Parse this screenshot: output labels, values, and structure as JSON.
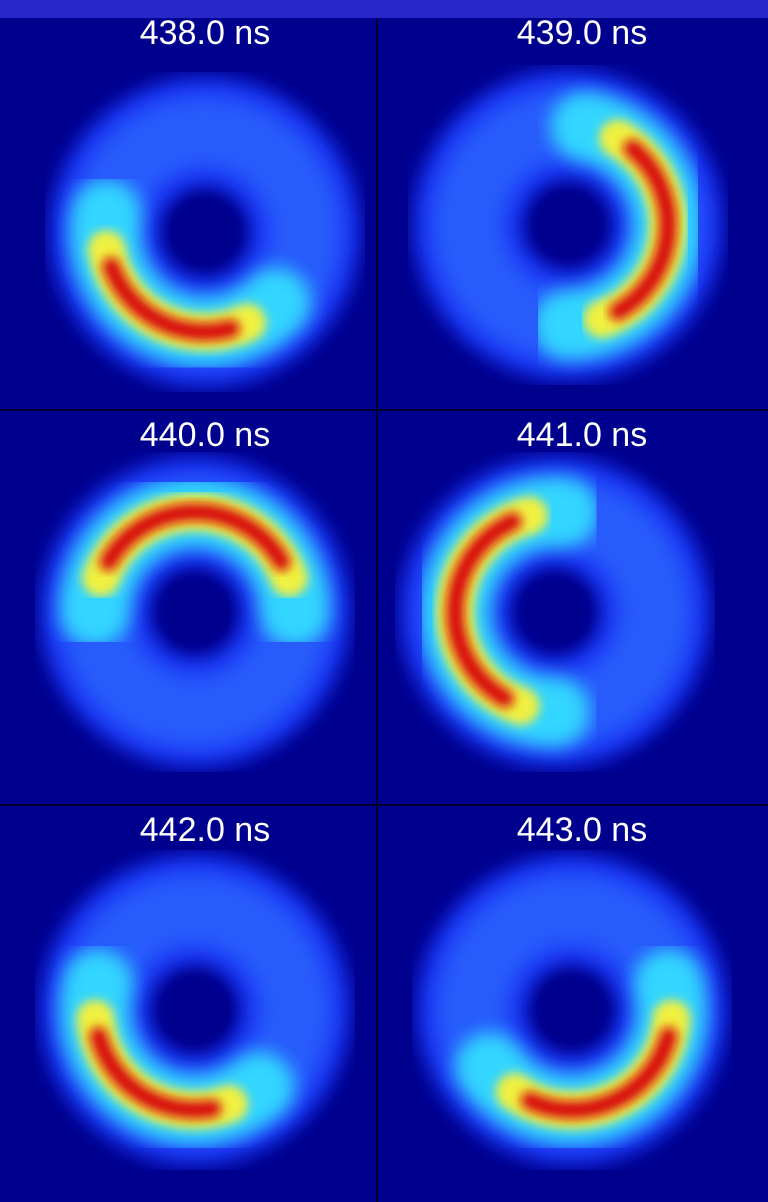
{
  "panels": [
    {
      "label": "438.0 ns"
    },
    {
      "label": "439.0 ns"
    },
    {
      "label": "440.0 ns"
    },
    {
      "label": "441.0 ns"
    },
    {
      "label": "442.0 ns"
    },
    {
      "label": "443.0 ns"
    }
  ]
}
